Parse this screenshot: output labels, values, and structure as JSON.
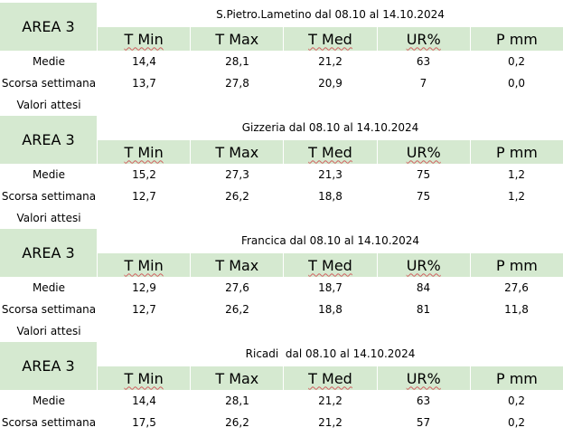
{
  "col_headers": [
    "T Min",
    "T Max",
    "T Med",
    "UR%",
    "P mm"
  ],
  "blocks": [
    {
      "area": "AREA 3",
      "title": "S.Pietro.Lametino dal 08.10 al 14.10.2024",
      "rows": [
        {
          "label": "Medie",
          "values": [
            "14,4",
            "28,1",
            "21,2",
            "63",
            "0,2"
          ]
        },
        {
          "label": "Scorsa settimana",
          "values": [
            "13,7",
            "27,8",
            "20,9",
            "7",
            "0,0"
          ]
        },
        {
          "label": "Valori attesi",
          "values": [
            "",
            "",
            "",
            "",
            ""
          ]
        }
      ]
    },
    {
      "area": "AREA 3",
      "title": "Gizzeria dal 08.10 al 14.10.2024",
      "rows": [
        {
          "label": "Medie",
          "values": [
            "15,2",
            "27,3",
            "21,3",
            "75",
            "1,2"
          ]
        },
        {
          "label": "Scorsa settimana",
          "values": [
            "12,7",
            "26,2",
            "18,8",
            "75",
            "1,2"
          ]
        },
        {
          "label": "Valori attesi",
          "values": [
            "",
            "",
            "",
            "",
            ""
          ]
        }
      ]
    },
    {
      "area": "AREA 3",
      "title": "Francica dal 08.10 al 14.10.2024",
      "rows": [
        {
          "label": "Medie",
          "values": [
            "12,9",
            "27,6",
            "18,7",
            "84",
            "27,6"
          ]
        },
        {
          "label": "Scorsa settimana",
          "values": [
            "12,7",
            "26,2",
            "18,8",
            "81",
            "11,8"
          ]
        },
        {
          "label": "Valori attesi",
          "values": [
            "",
            "",
            "",
            "",
            ""
          ]
        }
      ]
    },
    {
      "area": "AREA 3",
      "title": "Ricadi  dal 08.10 al 14.10.2024",
      "rows": [
        {
          "label": "Medie",
          "values": [
            "14,4",
            "28,1",
            "21,2",
            "63",
            "0,2"
          ]
        },
        {
          "label": "Scorsa settimana",
          "values": [
            "17,5",
            "26,2",
            "21,2",
            "57",
            "0,2"
          ]
        }
      ]
    }
  ]
}
